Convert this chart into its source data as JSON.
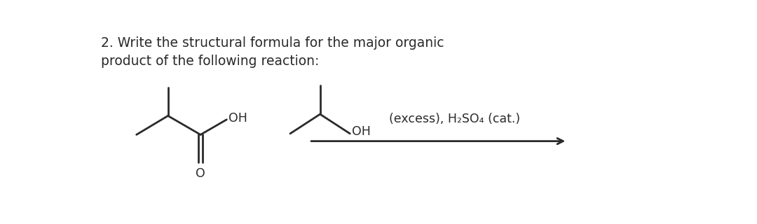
{
  "title_line1": "2. Write the structural formula for the major organic",
  "title_line2": "product of the following reaction:",
  "title_fontsize": 13.5,
  "background_color": "#ffffff",
  "line_color": "#2a2a2a",
  "text_color": "#2a2a2a",
  "arrow_label": "(excess), H₂SO₄ (cat.)",
  "mol_lw": 2.0,
  "font_size_label": 12.5
}
